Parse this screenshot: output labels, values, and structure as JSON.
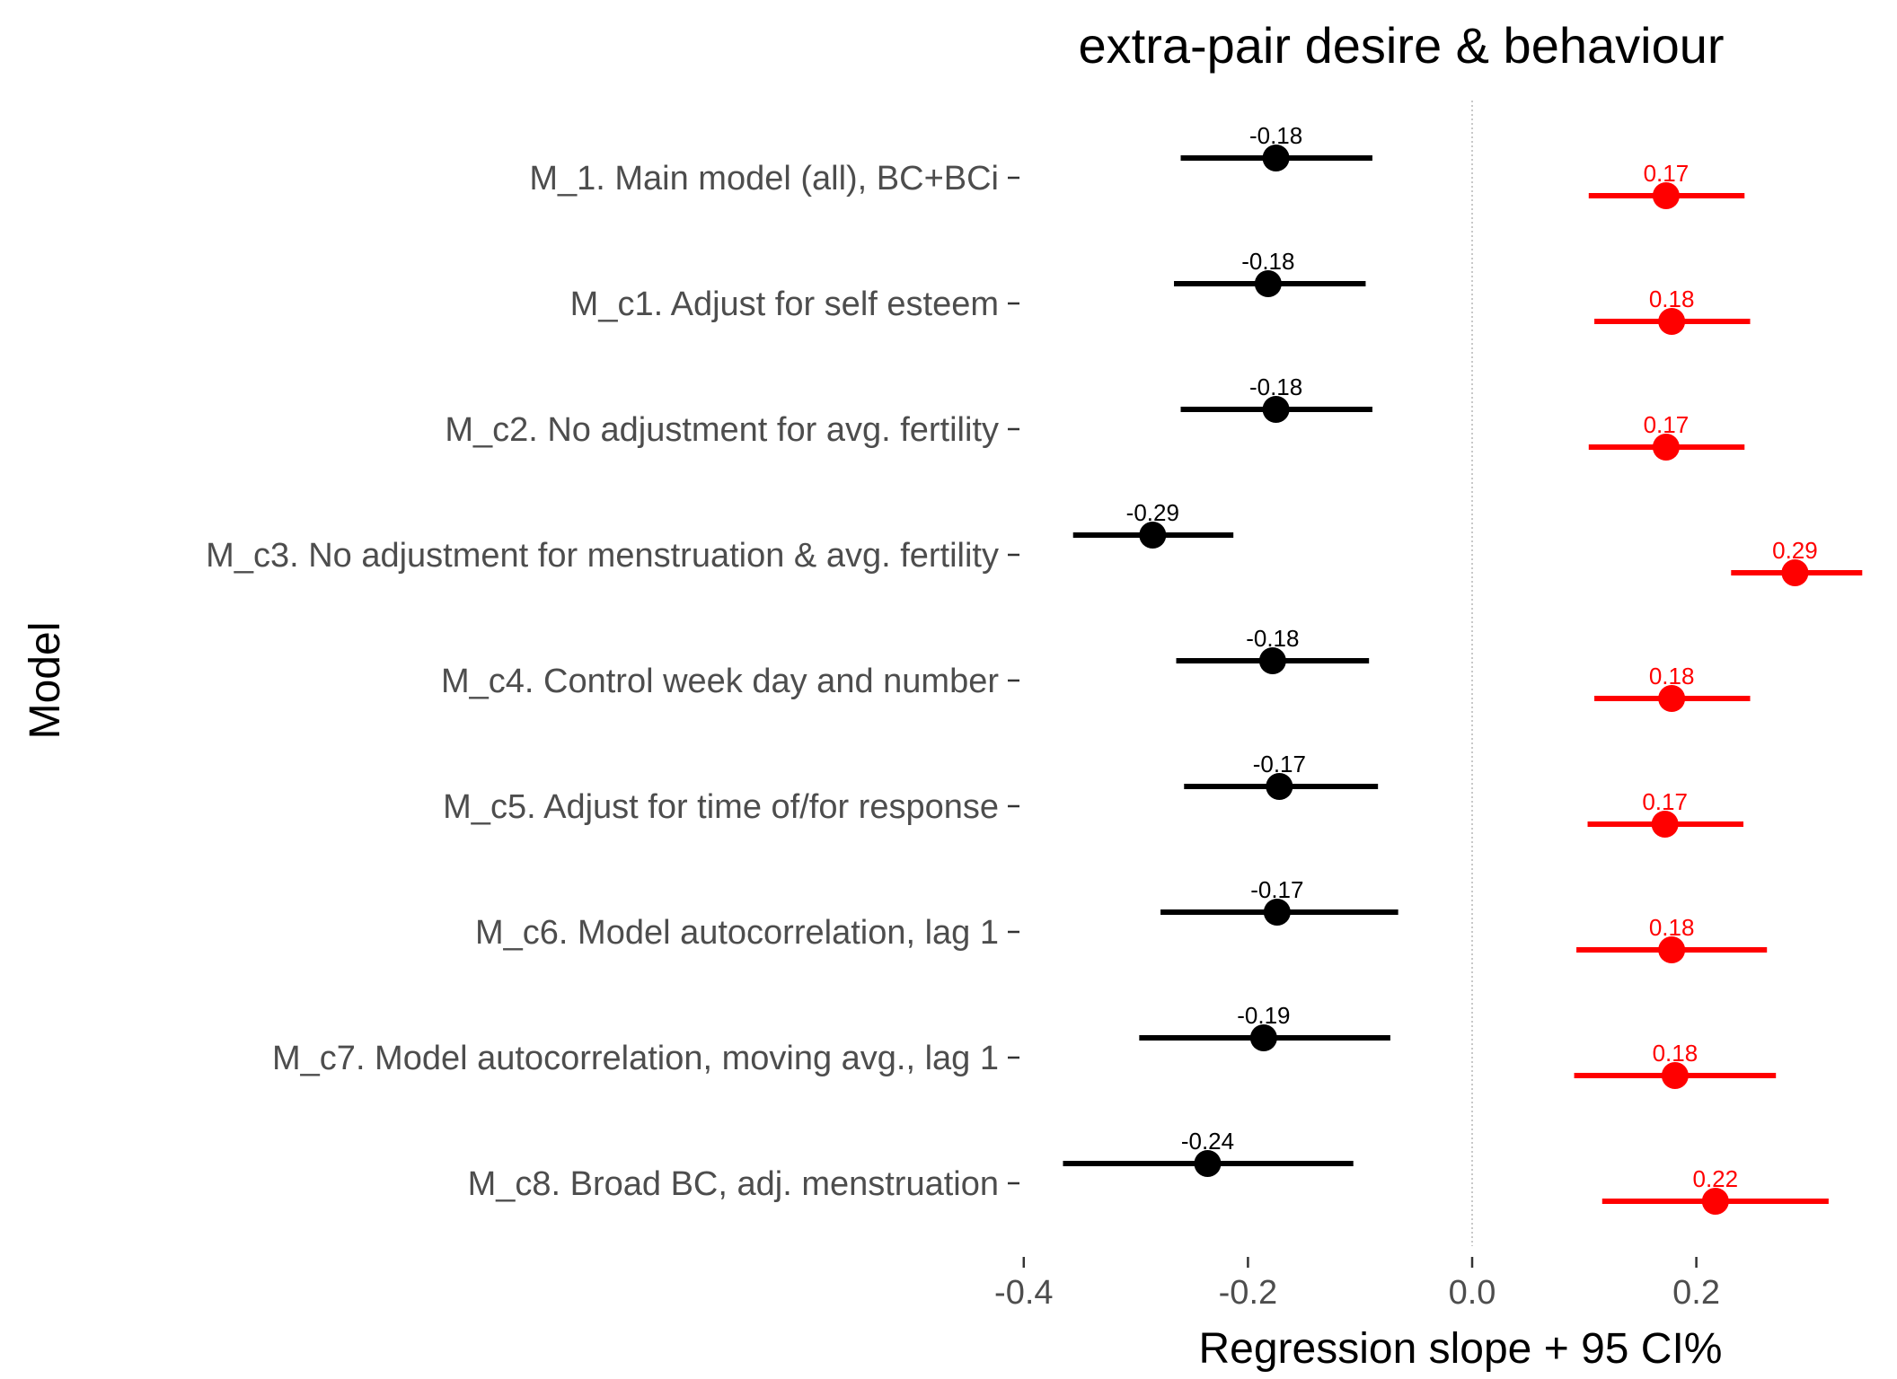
{
  "chart_data": {
    "type": "scatter",
    "title": "extra-pair desire & behaviour",
    "xlabel": "Regression slope + 95 CI%",
    "ylabel": "Model",
    "xlim": [
      -0.4,
      0.37
    ],
    "x_ticks": [
      -0.4,
      -0.2,
      0.0,
      0.2
    ],
    "x_tick_labels": [
      "-0.4",
      "-0.2",
      "0.0",
      "0.2"
    ],
    "reference_line": 0,
    "grid": false,
    "legend": "none",
    "categories": [
      "M_1. Main model (all), BC+BCi",
      "M_c1. Adjust for self esteem",
      "M_c2. No adjustment for avg. fertility",
      "M_c3. No adjustment for menstruation & avg. fertility",
      "M_c4. Control week day and number",
      "M_c5. Adjust for time of/for response",
      "M_c6. Model autocorrelation, lag 1",
      "M_c7. Model autocorrelation, moving avg., lag 1",
      "M_c8. Broad BC, adj. menstruation"
    ],
    "series": [
      {
        "color": "#000000",
        "estimates": [
          -0.175,
          -0.182,
          -0.175,
          -0.285,
          -0.178,
          -0.172,
          -0.174,
          -0.186,
          -0.236
        ],
        "ci_low": [
          -0.26,
          -0.266,
          -0.26,
          -0.356,
          -0.264,
          -0.257,
          -0.278,
          -0.297,
          -0.365
        ],
        "ci_high": [
          -0.089,
          -0.095,
          -0.089,
          -0.213,
          -0.092,
          -0.084,
          -0.066,
          -0.073,
          -0.106
        ],
        "labels": [
          "-0.18",
          "-0.18",
          "-0.18",
          "-0.29",
          "-0.18",
          "-0.17",
          "-0.17",
          "-0.19",
          "-0.24"
        ]
      },
      {
        "color": "#ff0000",
        "estimates": [
          0.173,
          0.178,
          0.173,
          0.288,
          0.178,
          0.172,
          0.178,
          0.181,
          0.217
        ],
        "ci_low": [
          0.104,
          0.109,
          0.104,
          0.231,
          0.109,
          0.103,
          0.093,
          0.091,
          0.116
        ],
        "ci_high": [
          0.243,
          0.248,
          0.243,
          0.348,
          0.248,
          0.242,
          0.263,
          0.271,
          0.318
        ],
        "labels": [
          "0.17",
          "0.18",
          "0.17",
          "0.29",
          "0.18",
          "0.17",
          "0.18",
          "0.18",
          "0.22"
        ]
      }
    ]
  }
}
